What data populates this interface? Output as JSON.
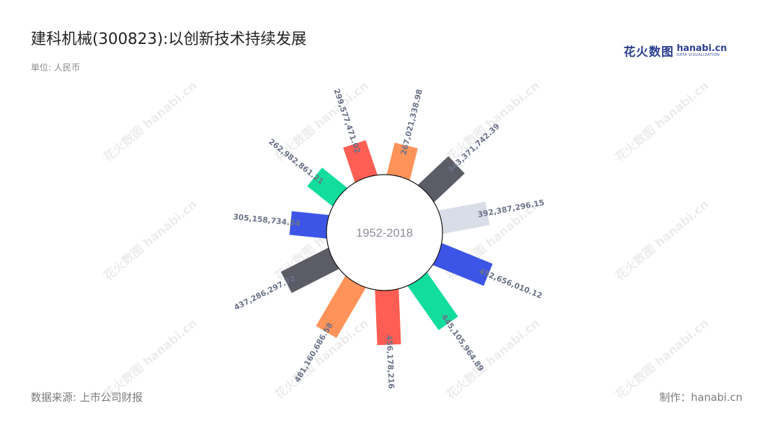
{
  "header": {
    "title": "建科机械(300823):以创新技术持续发展",
    "unit": "单位: 人民币"
  },
  "footer": {
    "source": "数据来源: 上市公司财报",
    "credit": "制作：hanabi.cn"
  },
  "logo": {
    "cn": "花火数图",
    "en": "hanabi.cn",
    "sub": "DATA VISUALIZATION"
  },
  "watermark": "花火数图 hanabi.cn",
  "center_label": "1952-2018",
  "colors": {
    "red": "#ff5e54",
    "orange": "#ff935a",
    "charcoal": "#5b5c66",
    "light": "#d9dde7",
    "blue": "#3d55e6",
    "green": "#12dd9c"
  },
  "chart_data": {
    "type": "bar",
    "polar": true,
    "categories": [
      "",
      "",
      "",
      "",
      "",
      "",
      "",
      "",
      "",
      "",
      ""
    ],
    "values": [
      267021338.98,
      343371742.39,
      392387296.15,
      452656010.12,
      445105964.89,
      456178216,
      481160686.58,
      437286297.72,
      305158734.54,
      262982861.21,
      299577471.02
    ],
    "labels": [
      "267,021,338.98",
      "343,371,742.39",
      "392,387,296.15",
      "452,656,010.12",
      "445,105,964.89",
      "456,178,216",
      "481,160,686.58",
      "437,286,297.72",
      "305,158,734.54",
      "262,982,861.21",
      "299,577,471.02"
    ],
    "bar_colors": [
      "#ff935a",
      "#5b5c66",
      "#d9dde7",
      "#3d55e6",
      "#12dd9c",
      "#ff5e54",
      "#ff935a",
      "#5b5c66",
      "#3d55e6",
      "#12dd9c",
      "#ff5e54"
    ],
    "ylim": [
      0,
      481160686.58
    ]
  }
}
